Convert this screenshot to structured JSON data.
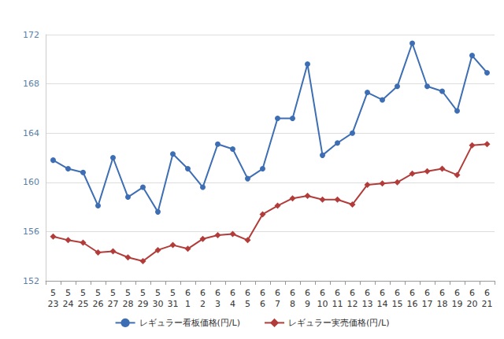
{
  "chart_data": {
    "type": "line",
    "categories": [
      "5\n23",
      "5\n24",
      "5\n25",
      "5\n26",
      "5\n27",
      "5\n28",
      "5\n29",
      "5\n30",
      "5\n31",
      "6\n1",
      "6\n2",
      "6\n3",
      "6\n4",
      "6\n5",
      "6\n6",
      "6\n7",
      "6\n8",
      "6\n9",
      "6\n10",
      "6\n11",
      "6\n12",
      "6\n13",
      "6\n14",
      "6\n15",
      "6\n16",
      "6\n17",
      "6\n18",
      "6\n19",
      "6\n20",
      "6\n21"
    ],
    "series": [
      {
        "name": "レギュラー看板価格(円/L)",
        "color": "#3d6eb4",
        "marker": "circle",
        "values": [
          161.8,
          161.1,
          160.8,
          158.1,
          162.0,
          158.8,
          159.6,
          157.6,
          162.3,
          161.1,
          159.6,
          163.1,
          162.7,
          160.3,
          161.1,
          165.2,
          165.2,
          169.6,
          162.2,
          163.2,
          164.0,
          167.3,
          166.7,
          167.8,
          171.3,
          167.8,
          167.4,
          165.8,
          170.3,
          168.9
        ]
      },
      {
        "name": "レギュラー実売価格(円/L)",
        "color": "#b23c3a",
        "marker": "diamond",
        "values": [
          155.6,
          155.3,
          155.1,
          154.3,
          154.4,
          153.9,
          153.6,
          154.5,
          154.9,
          154.6,
          155.4,
          155.7,
          155.8,
          155.3,
          157.4,
          158.1,
          158.7,
          158.9,
          158.6,
          158.6,
          158.2,
          159.8,
          159.9,
          160.0,
          160.7,
          160.9,
          161.1,
          160.6,
          163.0,
          163.1
        ]
      }
    ],
    "ylim": [
      152,
      172
    ],
    "yticks": [
      152,
      156,
      160,
      164,
      168,
      172
    ],
    "grid": true,
    "legend": "bottom"
  }
}
